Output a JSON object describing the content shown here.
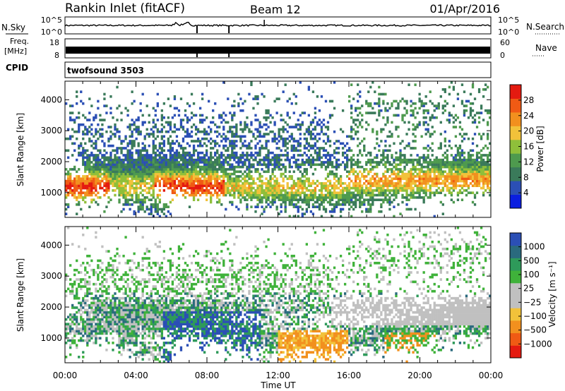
{
  "header": {
    "station": "Rankin Inlet (fitACF)",
    "beam": "Beam 12",
    "date": "01/Apr/2016"
  },
  "top_panels": {
    "nsky_label": "N.Sky",
    "nsearch_label": "N.Search",
    "nsky_ticks": [
      "10^5",
      "10^0"
    ],
    "nsky_right_ticks": [
      "10^5",
      "10^0"
    ],
    "freq_label_1": "Freq.",
    "freq_label_2": "[MHz]",
    "freq_ticks": [
      "18",
      "8"
    ],
    "nave_ticks": [
      "60",
      "0"
    ],
    "nave_label": "Nave",
    "cpid_label": "CPID",
    "cpid_value": "twofsound 3503"
  },
  "colors": {
    "power_scale": [
      "#0a1ee0",
      "#2b4fb5",
      "#3a7a5a",
      "#4e9a4e",
      "#8fbf3a",
      "#f2c23a",
      "#f2901e",
      "#f05a14",
      "#e41a10"
    ],
    "velocity_scale": [
      "#e41a10",
      "#f05a14",
      "#f2901e",
      "#f2c23a",
      "#c0c0c0",
      "#c0c0c0",
      "#3fb23a",
      "#2e9a5a",
      "#2a6a7e",
      "#2b4fb5"
    ]
  },
  "chart_data": [
    {
      "type": "heatmap",
      "name": "power",
      "ylabel": "Slant Range [km]",
      "xlabel": "",
      "xlim_hours": [
        0,
        24
      ],
      "ylim_km": [
        200,
        4600
      ],
      "yticks": [
        "4000",
        "3000",
        "2000",
        "1000"
      ],
      "colorbar_label": "Power [dB]",
      "colorbar_ticks": [
        "28",
        "24",
        "20",
        "16",
        "12",
        "8",
        "4"
      ],
      "colorbar_range": [
        0,
        32
      ]
    },
    {
      "type": "heatmap",
      "name": "velocity",
      "ylabel": "Slant Range [km]",
      "xlabel": "Time UT",
      "xlim_hours": [
        0,
        24
      ],
      "ylim_km": [
        200,
        4600
      ],
      "yticks": [
        "4000",
        "3000",
        "2000",
        "1000"
      ],
      "xticks": [
        "00:00",
        "04:00",
        "08:00",
        "12:00",
        "16:00",
        "20:00",
        "00:00"
      ],
      "colorbar_label": "Velocity [m s⁻¹]",
      "colorbar_ticks": [
        "1000",
        "500",
        "100",
        "25",
        "−25",
        "−100",
        "−500",
        "−1000"
      ]
    }
  ]
}
